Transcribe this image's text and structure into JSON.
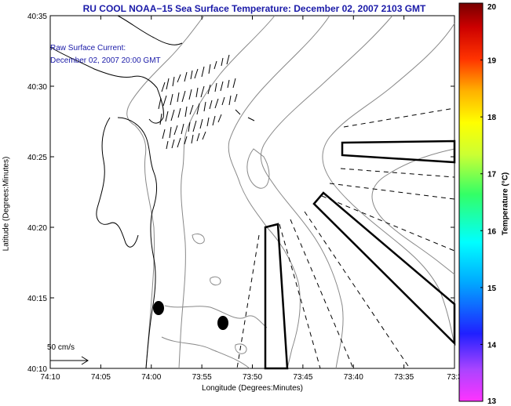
{
  "title": "RU COOL  NOAA−15  Sea Surface Temperature:  December 02, 2007 2103 GMT",
  "current_label": "Raw Surface Current:",
  "current_time": "December 02, 2007 20:00 GMT",
  "xlabel": "Longitude (Degrees:Minutes)",
  "ylabel": "Latitude (Degrees:Minutes)",
  "colorbar_label": "Temperature (°C)",
  "scale_label": "50 cm/s",
  "x_ticks": [
    "74:10",
    "74:05",
    "74:00",
    "73:55",
    "73:50",
    "73:45",
    "73:40",
    "73:35",
    "73:3"
  ],
  "y_ticks": [
    "40:35",
    "40:30",
    "40:25",
    "40:20",
    "40:15",
    "40:10"
  ],
  "colorbar_ticks": [
    "20",
    "19",
    "18",
    "17",
    "16",
    "15",
    "14",
    "13"
  ],
  "colors": {
    "title": "#1a1aa8",
    "contour": "#888888",
    "colorbar": [
      "#ff33ff",
      "#8833ff",
      "#2020ff",
      "#00aaff",
      "#00ffff",
      "#33ff66",
      "#ccff33",
      "#ffff00",
      "#ffb000",
      "#ff3300",
      "#cc0000",
      "#770000"
    ]
  }
}
